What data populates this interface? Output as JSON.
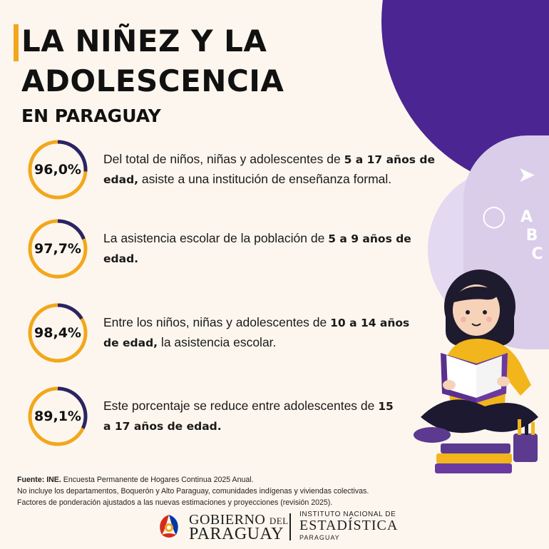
{
  "header": {
    "title_line1": "LA NIÑEZ Y LA",
    "title_line2": "ADOLESCENCIA",
    "subtitle": "EN PARAGUAY"
  },
  "colors": {
    "accent_orange": "#f2a71b",
    "ring_navy": "#2a2466",
    "brand_purple": "#4b2591",
    "lilac": "#d9cdea",
    "background": "#fdf6ee"
  },
  "stats": [
    {
      "value": "96,0%",
      "percent": 96.0,
      "text_a": "Del total de niños, niñas y adolescentes de ",
      "bold": "5 a 17 años de edad,",
      "text_b": " asiste a una institución de enseñanza formal."
    },
    {
      "value": "97,7%",
      "percent": 97.7,
      "text_a": "La asistencia escolar de la población de ",
      "bold": "5 a 9 años de edad.",
      "text_b": ""
    },
    {
      "value": "98,4%",
      "percent": 98.4,
      "text_a": "Entre los niños, niñas y adolescentes de ",
      "bold": "10 a 14 años de edad,",
      "text_b": " la asistencia escolar."
    },
    {
      "value": "89,1%",
      "percent": 89.1,
      "text_a": "Este porcentaje se reduce entre adolescentes de ",
      "bold": "15 a 17 años de edad.",
      "text_b": ""
    }
  ],
  "footer": {
    "source_label": "Fuente: INE.",
    "source_text": " Encuesta Permanente de Hogares Continua 2025 Anual.",
    "note1": "No incluye los departamentos, Boquerón y Alto Paraguay, comunidades indígenas y viviendas colectivas.",
    "note2": "Factores de ponderación ajustados a las nuevas estimaciones y proyecciones (revisión 2025)."
  },
  "logos": {
    "gob_word1": "GOBIERNO",
    "gob_word2": "DEL",
    "gob_word3": "PARAGUAY",
    "ine_line1": "INSTITUTO NACIONAL DE",
    "ine_line2": "ESTADÍSTICA",
    "ine_line3": "PARAGUAY"
  },
  "icons": [
    "paper-plane-icon",
    "apple-icon",
    "letters-abc-icon",
    "girl-reading-illustration",
    "pencil-cup-icon",
    "paraguay-flag-logo"
  ]
}
